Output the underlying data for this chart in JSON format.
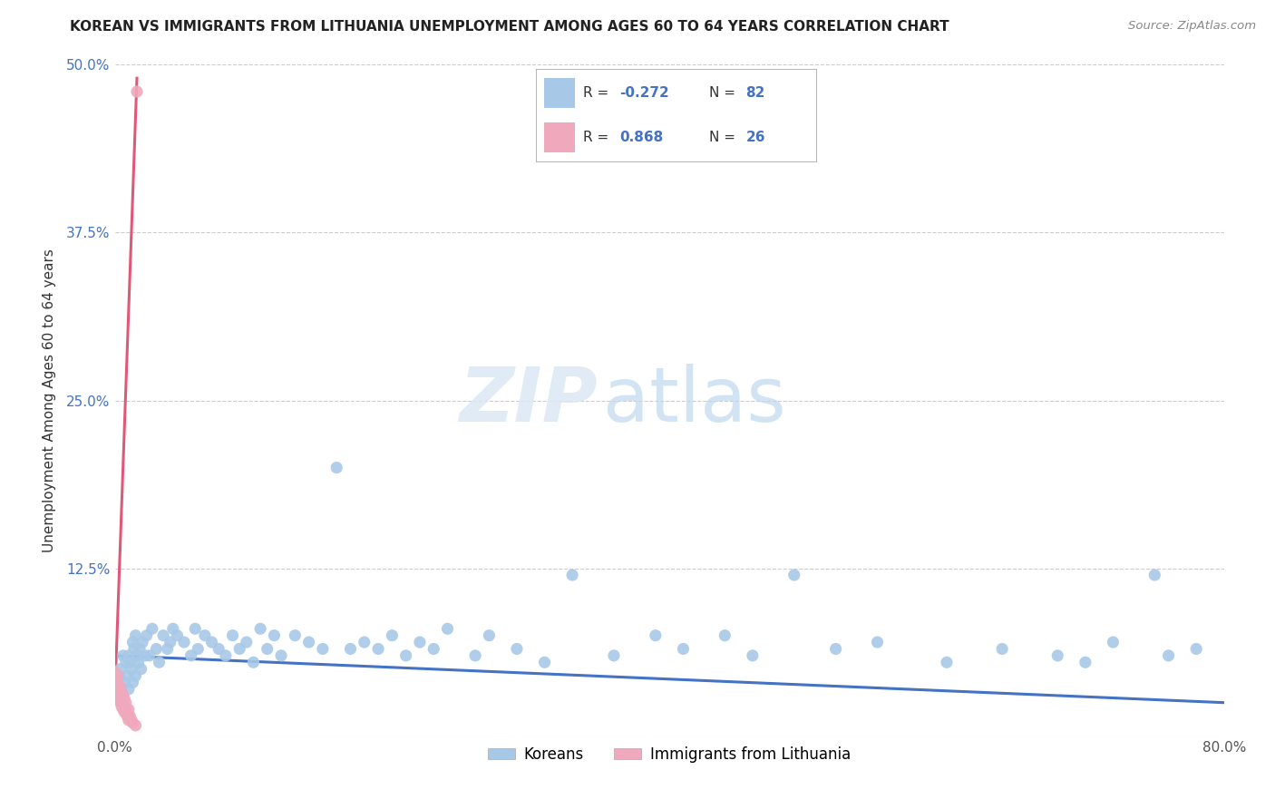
{
  "title": "KOREAN VS IMMIGRANTS FROM LITHUANIA UNEMPLOYMENT AMONG AGES 60 TO 64 YEARS CORRELATION CHART",
  "source": "Source: ZipAtlas.com",
  "ylabel": "Unemployment Among Ages 60 to 64 years",
  "xlabel_koreans": "Koreans",
  "xlabel_lithuania": "Immigrants from Lithuania",
  "xlim": [
    0.0,
    0.8
  ],
  "ylim": [
    0.0,
    0.5
  ],
  "xticks": [
    0.0,
    0.1,
    0.2,
    0.3,
    0.4,
    0.5,
    0.6,
    0.7,
    0.8
  ],
  "yticks": [
    0.0,
    0.125,
    0.25,
    0.375,
    0.5
  ],
  "ytick_labels": [
    "",
    "12.5%",
    "25.0%",
    "37.5%",
    "50.0%"
  ],
  "xtick_labels": [
    "0.0%",
    "",
    "",
    "",
    "",
    "",
    "",
    "",
    "80.0%"
  ],
  "korean_R": -0.272,
  "korean_N": 82,
  "lithuania_R": 0.868,
  "lithuania_N": 26,
  "korean_color": "#a8c8e8",
  "lithuania_color": "#f0a8bc",
  "trend_korean_color": "#4472c4",
  "trend_lithuania_color": "#e05878",
  "korean_x": [
    0.002,
    0.003,
    0.004,
    0.005,
    0.006,
    0.007,
    0.008,
    0.009,
    0.01,
    0.01,
    0.011,
    0.012,
    0.013,
    0.013,
    0.014,
    0.015,
    0.015,
    0.016,
    0.017,
    0.018,
    0.019,
    0.02,
    0.022,
    0.023,
    0.025,
    0.027,
    0.03,
    0.032,
    0.035,
    0.038,
    0.04,
    0.042,
    0.045,
    0.05,
    0.055,
    0.058,
    0.06,
    0.065,
    0.07,
    0.075,
    0.08,
    0.085,
    0.09,
    0.095,
    0.1,
    0.105,
    0.11,
    0.115,
    0.12,
    0.13,
    0.14,
    0.15,
    0.16,
    0.17,
    0.18,
    0.19,
    0.2,
    0.21,
    0.22,
    0.23,
    0.24,
    0.26,
    0.27,
    0.29,
    0.31,
    0.33,
    0.36,
    0.39,
    0.41,
    0.44,
    0.46,
    0.49,
    0.52,
    0.55,
    0.6,
    0.64,
    0.68,
    0.7,
    0.72,
    0.75,
    0.76,
    0.78
  ],
  "korean_y": [
    0.04,
    0.045,
    0.05,
    0.035,
    0.06,
    0.04,
    0.055,
    0.045,
    0.035,
    0.06,
    0.055,
    0.05,
    0.04,
    0.07,
    0.065,
    0.045,
    0.075,
    0.06,
    0.055,
    0.065,
    0.05,
    0.07,
    0.06,
    0.075,
    0.06,
    0.08,
    0.065,
    0.055,
    0.075,
    0.065,
    0.07,
    0.08,
    0.075,
    0.07,
    0.06,
    0.08,
    0.065,
    0.075,
    0.07,
    0.065,
    0.06,
    0.075,
    0.065,
    0.07,
    0.055,
    0.08,
    0.065,
    0.075,
    0.06,
    0.075,
    0.07,
    0.065,
    0.2,
    0.065,
    0.07,
    0.065,
    0.075,
    0.06,
    0.07,
    0.065,
    0.08,
    0.06,
    0.075,
    0.065,
    0.055,
    0.12,
    0.06,
    0.075,
    0.065,
    0.075,
    0.06,
    0.12,
    0.065,
    0.07,
    0.055,
    0.065,
    0.06,
    0.055,
    0.07,
    0.12,
    0.06,
    0.065
  ],
  "korea_trend_x": [
    0.0,
    0.8
  ],
  "korea_trend_y": [
    0.06,
    0.025
  ],
  "lith_x": [
    0.0,
    0.0,
    0.001,
    0.001,
    0.002,
    0.002,
    0.003,
    0.003,
    0.004,
    0.004,
    0.005,
    0.005,
    0.006,
    0.006,
    0.007,
    0.007,
    0.008,
    0.008,
    0.009,
    0.01,
    0.01,
    0.011,
    0.012,
    0.013,
    0.015,
    0.016
  ],
  "lith_y": [
    0.038,
    0.048,
    0.028,
    0.04,
    0.032,
    0.045,
    0.028,
    0.038,
    0.025,
    0.035,
    0.022,
    0.032,
    0.02,
    0.03,
    0.018,
    0.028,
    0.018,
    0.025,
    0.015,
    0.012,
    0.02,
    0.015,
    0.012,
    0.01,
    0.008,
    0.48
  ],
  "lith_trend_x": [
    0.0,
    0.016
  ],
  "lith_trend_y": [
    0.028,
    0.49
  ]
}
